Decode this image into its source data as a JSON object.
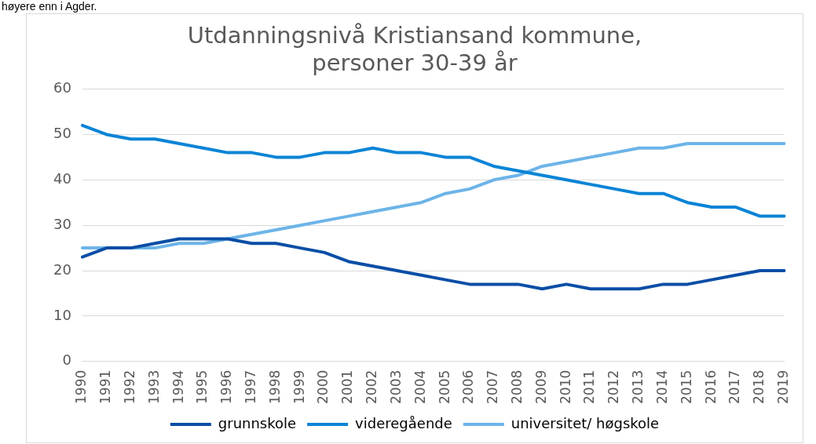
{
  "chart_data": {
    "type": "line",
    "title": "Utdanningsnivå Kristiansand kommune,\npersoner 30-39 år",
    "annotations": [
      "høyere enn i Agder."
    ],
    "categories": [
      "1990",
      "1991",
      "1992",
      "1993",
      "1994",
      "1995",
      "1996",
      "1997",
      "1998",
      "1999",
      "2000",
      "2001",
      "2002",
      "2003",
      "2004",
      "2005",
      "2006",
      "2007",
      "2008",
      "2009",
      "2010",
      "2011",
      "2012",
      "2013",
      "2014",
      "2015",
      "2016",
      "2017",
      "2018",
      "2019"
    ],
    "series": [
      {
        "name": "grunnskole",
        "color": "#0a4ea6",
        "values": [
          23,
          25,
          25,
          26,
          27,
          27,
          27,
          26,
          26,
          25,
          24,
          22,
          21,
          20,
          19,
          18,
          17,
          17,
          17,
          16,
          17,
          16,
          16,
          16,
          17,
          17,
          18,
          19,
          20,
          20
        ]
      },
      {
        "name": "videregående",
        "color": "#0a84d6",
        "values": [
          52,
          50,
          49,
          49,
          48,
          47,
          46,
          46,
          45,
          45,
          46,
          46,
          47,
          46,
          46,
          45,
          45,
          43,
          42,
          41,
          40,
          39,
          38,
          37,
          37,
          35,
          34,
          34,
          32,
          32
        ]
      },
      {
        "name": "universitet/ høgskole",
        "color": "#6cb4e8",
        "values": [
          25,
          25,
          25,
          25,
          26,
          26,
          27,
          28,
          29,
          30,
          31,
          32,
          33,
          34,
          35,
          37,
          38,
          40,
          41,
          43,
          44,
          45,
          46,
          47,
          47,
          48,
          48,
          48,
          48,
          48
        ]
      }
    ],
    "ylim": [
      0,
      60
    ],
    "yticks": [
      0,
      10,
      20,
      30,
      40,
      50,
      60
    ],
    "grid": "y",
    "legend": "bottom",
    "marker": "none",
    "line_style": "solid"
  }
}
